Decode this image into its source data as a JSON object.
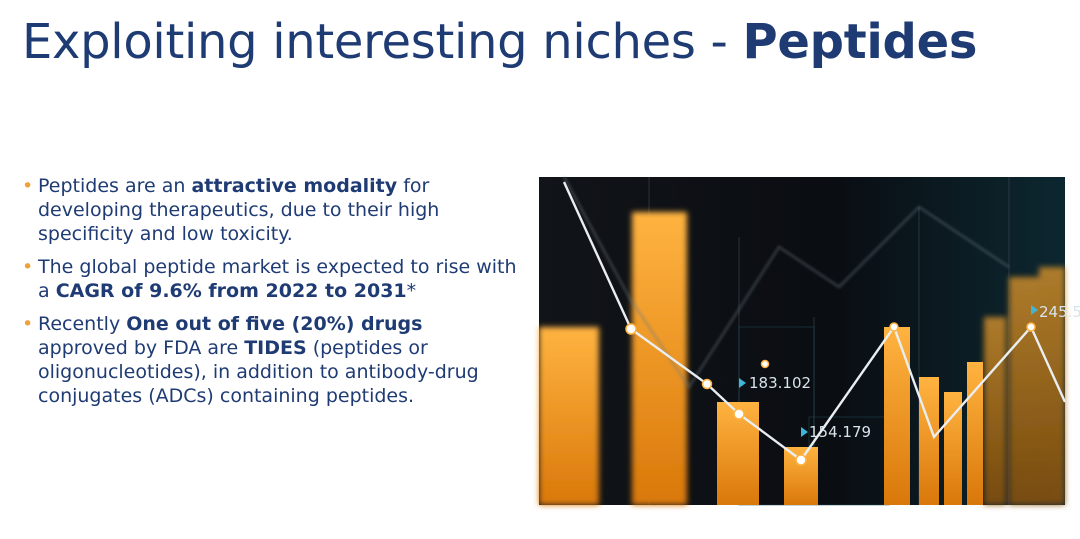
{
  "slide": {
    "title_part1": "Exploiting interesting niches - ",
    "title_part2": "Peptides"
  },
  "bullets": [
    {
      "t1": "Peptides are an ",
      "b1": "attractive modality",
      "t2": " for developing therapeutics, due to their high specificity and low toxicity.",
      "b2": "",
      "t3": ""
    },
    {
      "t1": "The global peptide market is expected to rise with a ",
      "b1": "CAGR of 9.6% from 2022 to 2031",
      "t2": "*",
      "b2": "",
      "t3": ""
    },
    {
      "t1": "Recently ",
      "b1": "One out of five (20%) drugs",
      "t2": " approved by FDA are ",
      "b2": "TIDES",
      "t3": " (peptides or oligonucleotides), in addition to  antibody-drug conjugates (ADCs) containing peptides."
    }
  ],
  "image": {
    "labels": [
      "183.102",
      "154.179",
      "245.5"
    ]
  },
  "colors": {
    "title": "#1f3b73",
    "text": "#1f3b73",
    "bullet": "#f0a23a",
    "bar": "#f29a1d"
  }
}
